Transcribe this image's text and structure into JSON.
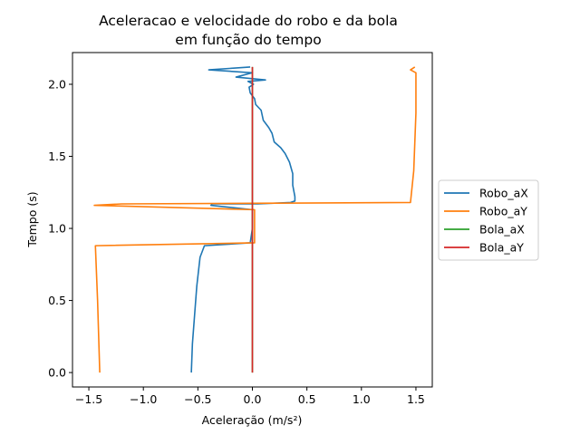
{
  "chart_data": {
    "type": "line",
    "title_lines": [
      "Aceleracao e velocidade do robo e da bola",
      "em função do tempo"
    ],
    "xlabel": "Aceleração (m/s²)",
    "ylabel": "Tempo (s)",
    "xlim": [
      -1.65,
      1.65
    ],
    "ylim": [
      -0.1,
      2.22
    ],
    "xticks": [
      -1.5,
      -1.0,
      -0.5,
      0.0,
      0.5,
      1.0,
      1.5
    ],
    "xtick_labels": [
      "−1.5",
      "−1.0",
      "−0.5",
      "0.0",
      "0.5",
      "1.0",
      "1.5"
    ],
    "yticks": [
      0.0,
      0.5,
      1.0,
      1.5,
      2.0
    ],
    "ytick_labels": [
      "0.0",
      "0.5",
      "1.0",
      "1.5",
      "2.0"
    ],
    "grid": false,
    "legend_position": "outside-right",
    "series": [
      {
        "name": "Robo_aX",
        "color": "#1f77b4",
        "points": [
          [
            -0.56,
            0.0
          ],
          [
            -0.55,
            0.2
          ],
          [
            -0.53,
            0.4
          ],
          [
            -0.51,
            0.6
          ],
          [
            -0.48,
            0.8
          ],
          [
            -0.44,
            0.88
          ],
          [
            -0.02,
            0.9
          ],
          [
            0.0,
            1.0
          ],
          [
            0.0,
            1.13
          ],
          [
            -0.38,
            1.16
          ],
          [
            -0.37,
            1.17
          ],
          [
            0.05,
            1.17
          ],
          [
            0.35,
            1.18
          ],
          [
            0.39,
            1.19
          ],
          [
            0.39,
            1.22
          ],
          [
            0.37,
            1.3
          ],
          [
            0.37,
            1.38
          ],
          [
            0.34,
            1.46
          ],
          [
            0.3,
            1.52
          ],
          [
            0.26,
            1.56
          ],
          [
            0.2,
            1.6
          ],
          [
            0.18,
            1.66
          ],
          [
            0.15,
            1.7
          ],
          [
            0.1,
            1.75
          ],
          [
            0.08,
            1.82
          ],
          [
            0.03,
            1.86
          ],
          [
            0.02,
            1.9
          ],
          [
            -0.02,
            1.94
          ],
          [
            -0.03,
            1.98
          ],
          [
            0.01,
            2.0
          ],
          [
            -0.04,
            2.02
          ],
          [
            0.12,
            2.03
          ],
          [
            -0.15,
            2.05
          ],
          [
            0.0,
            2.08
          ],
          [
            -0.4,
            2.1
          ],
          [
            -0.02,
            2.12
          ]
        ]
      },
      {
        "name": "Robo_aY",
        "color": "#ff7f0e",
        "points": [
          [
            -1.4,
            0.0
          ],
          [
            -1.42,
            0.5
          ],
          [
            -1.44,
            0.88
          ],
          [
            0.02,
            0.9
          ],
          [
            0.02,
            1.13
          ],
          [
            -1.45,
            1.16
          ],
          [
            -1.2,
            1.17
          ],
          [
            1.45,
            1.18
          ],
          [
            1.48,
            1.4
          ],
          [
            1.5,
            1.8
          ],
          [
            1.5,
            2.08
          ],
          [
            1.45,
            2.1
          ],
          [
            1.49,
            2.12
          ]
        ]
      },
      {
        "name": "Bola_aX",
        "color": "#2ca02c",
        "points": [
          [
            0.0,
            0.0
          ],
          [
            0.0,
            2.12
          ]
        ]
      },
      {
        "name": "Bola_aY",
        "color": "#d62728",
        "points": [
          [
            0.0,
            0.0
          ],
          [
            0.0,
            2.12
          ]
        ]
      }
    ]
  }
}
